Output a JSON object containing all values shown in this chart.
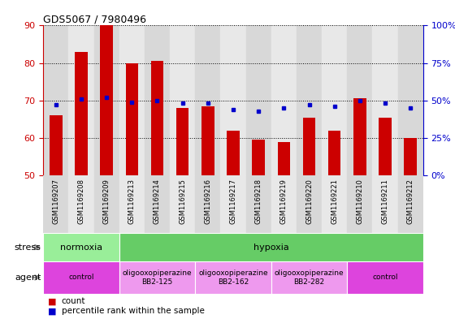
{
  "title": "GDS5067 / 7980496",
  "samples": [
    "GSM1169207",
    "GSM1169208",
    "GSM1169209",
    "GSM1169213",
    "GSM1169214",
    "GSM1169215",
    "GSM1169216",
    "GSM1169217",
    "GSM1169218",
    "GSM1169219",
    "GSM1169220",
    "GSM1169221",
    "GSM1169210",
    "GSM1169211",
    "GSM1169212"
  ],
  "counts": [
    66,
    83,
    90,
    80,
    80.5,
    68,
    68.5,
    62,
    59.5,
    59,
    65.5,
    62,
    70.5,
    65.5,
    60
  ],
  "percentiles": [
    47,
    51,
    52,
    49,
    50,
    48,
    48,
    44,
    43,
    45,
    47,
    46,
    50,
    48,
    45
  ],
  "ylim_left": [
    50,
    90
  ],
  "ylim_right": [
    0,
    100
  ],
  "yticks_left": [
    50,
    60,
    70,
    80,
    90
  ],
  "yticks_right": [
    0,
    25,
    50,
    75,
    100
  ],
  "ytick_labels_right": [
    "0%",
    "25%",
    "50%",
    "75%",
    "100%"
  ],
  "bar_color": "#cc0000",
  "dot_color": "#0000cc",
  "bar_width": 0.5,
  "stress_groups": [
    {
      "label": "normoxia",
      "start": 0,
      "end": 3,
      "color": "#99ee99"
    },
    {
      "label": "hypoxia",
      "start": 3,
      "end": 15,
      "color": "#66cc66"
    }
  ],
  "agent_groups": [
    {
      "label": "control",
      "start": 0,
      "end": 3,
      "color": "#dd44dd"
    },
    {
      "label": "oligooxopiperazine\nBB2-125",
      "start": 3,
      "end": 6,
      "color": "#ee99ee"
    },
    {
      "label": "oligooxopiperazine\nBB2-162",
      "start": 6,
      "end": 9,
      "color": "#ee99ee"
    },
    {
      "label": "oligooxopiperazine\nBB2-282",
      "start": 9,
      "end": 12,
      "color": "#ee99ee"
    },
    {
      "label": "control",
      "start": 12,
      "end": 15,
      "color": "#dd44dd"
    }
  ],
  "legend_count_label": "count",
  "legend_pct_label": "percentile rank within the sample",
  "left_axis_color": "#cc0000",
  "right_axis_color": "#0000cc",
  "col_bg_even": "#d8d8d8",
  "col_bg_odd": "#e8e8e8"
}
